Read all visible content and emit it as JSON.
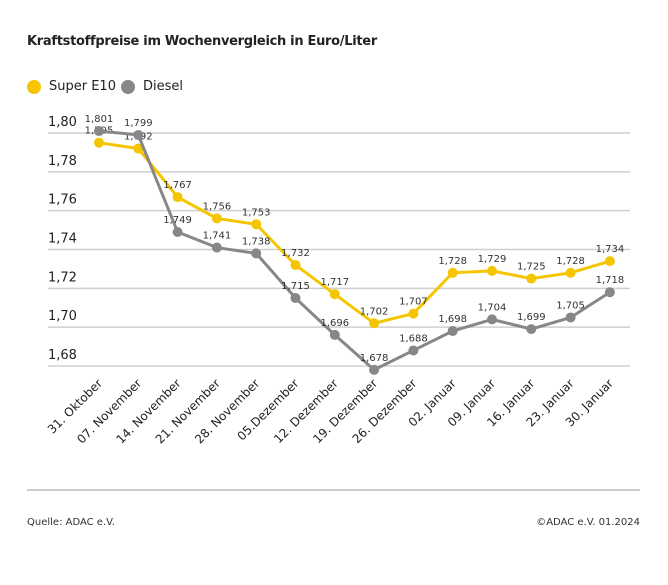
{
  "chart_data": {
    "type": "line",
    "title": "Kraftstoffpreise im Wochenvergleich in Euro/Liter",
    "categories": [
      "31. Oktober",
      "07. November",
      "14. November",
      "21. November",
      "28. November",
      "05.Dezember",
      "12. Dezember",
      "19. Dezember",
      "26. Dezember",
      "02. Januar",
      "09. Januar",
      "16. Januar",
      "23. Januar",
      "30. Januar"
    ],
    "series": [
      {
        "name": "Super E10",
        "color": "#f5c600",
        "values": [
          1.795,
          1.792,
          1.767,
          1.756,
          1.753,
          1.732,
          1.717,
          1.702,
          1.707,
          1.728,
          1.729,
          1.725,
          1.728,
          1.734
        ]
      },
      {
        "name": "Diesel",
        "color": "#878787",
        "values": [
          1.801,
          1.799,
          1.749,
          1.741,
          1.738,
          1.715,
          1.696,
          1.678,
          1.688,
          1.698,
          1.704,
          1.699,
          1.705,
          1.718
        ]
      }
    ],
    "yticks": [
      1.8,
      1.78,
      1.76,
      1.74,
      1.72,
      1.7,
      1.68
    ],
    "ylim": [
      1.68,
      1.8
    ],
    "grid": true,
    "legend": "top-left"
  },
  "source": "Quelle: ADAC e.V.",
  "copyright": "©ADAC e.V. 01.2024"
}
